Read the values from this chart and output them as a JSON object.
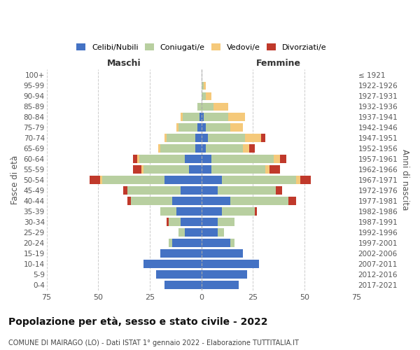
{
  "age_groups": [
    "0-4",
    "5-9",
    "10-14",
    "15-19",
    "20-24",
    "25-29",
    "30-34",
    "35-39",
    "40-44",
    "45-49",
    "50-54",
    "55-59",
    "60-64",
    "65-69",
    "70-74",
    "75-79",
    "80-84",
    "85-89",
    "90-94",
    "95-99",
    "100+"
  ],
  "birth_years": [
    "2017-2021",
    "2012-2016",
    "2007-2011",
    "2002-2006",
    "1997-2001",
    "1992-1996",
    "1987-1991",
    "1982-1986",
    "1977-1981",
    "1972-1976",
    "1967-1971",
    "1962-1966",
    "1957-1961",
    "1952-1956",
    "1947-1951",
    "1942-1946",
    "1937-1941",
    "1932-1936",
    "1927-1931",
    "1922-1926",
    "≤ 1921"
  ],
  "colors": {
    "celibi": "#4472c4",
    "coniugati": "#b8cfa0",
    "vedovi": "#f5c97a",
    "divorziati": "#c0392b"
  },
  "maschi": {
    "celibi": [
      18,
      22,
      28,
      20,
      14,
      8,
      10,
      12,
      14,
      10,
      18,
      6,
      8,
      3,
      3,
      2,
      1,
      0,
      0,
      0,
      0
    ],
    "coniugati": [
      0,
      0,
      0,
      0,
      2,
      3,
      6,
      8,
      20,
      26,
      30,
      22,
      22,
      17,
      14,
      9,
      8,
      2,
      0,
      0,
      0
    ],
    "vedovi": [
      0,
      0,
      0,
      0,
      0,
      0,
      0,
      0,
      0,
      0,
      1,
      1,
      1,
      1,
      1,
      1,
      1,
      0,
      0,
      0,
      0
    ],
    "divorziati": [
      0,
      0,
      0,
      0,
      0,
      0,
      1,
      0,
      2,
      2,
      5,
      4,
      2,
      0,
      0,
      0,
      0,
      0,
      0,
      0,
      0
    ]
  },
  "femmine": {
    "celibi": [
      18,
      22,
      28,
      20,
      14,
      8,
      8,
      10,
      14,
      8,
      10,
      5,
      5,
      2,
      3,
      2,
      1,
      0,
      0,
      0,
      0
    ],
    "coniugati": [
      0,
      0,
      0,
      0,
      2,
      3,
      8,
      16,
      28,
      28,
      36,
      26,
      30,
      18,
      18,
      12,
      12,
      6,
      2,
      1,
      0
    ],
    "vedovi": [
      0,
      0,
      0,
      0,
      0,
      0,
      0,
      0,
      0,
      0,
      2,
      2,
      3,
      3,
      8,
      6,
      8,
      7,
      3,
      1,
      0
    ],
    "divorziati": [
      0,
      0,
      0,
      0,
      0,
      0,
      0,
      1,
      4,
      3,
      5,
      5,
      3,
      3,
      2,
      0,
      0,
      0,
      0,
      0,
      0
    ]
  },
  "xlim": 75,
  "xticks": [
    -75,
    -50,
    -25,
    0,
    25,
    50,
    75
  ],
  "title": "Popolazione per età, sesso e stato civile - 2022",
  "subtitle": "COMUNE DI MAIRAGO (LO) - Dati ISTAT 1° gennaio 2022 - Elaborazione TUTTITALIA.IT",
  "xlabel_left": "Maschi",
  "xlabel_right": "Femmine",
  "ylabel_left": "Fasce di età",
  "ylabel_right": "Anni di nascita"
}
